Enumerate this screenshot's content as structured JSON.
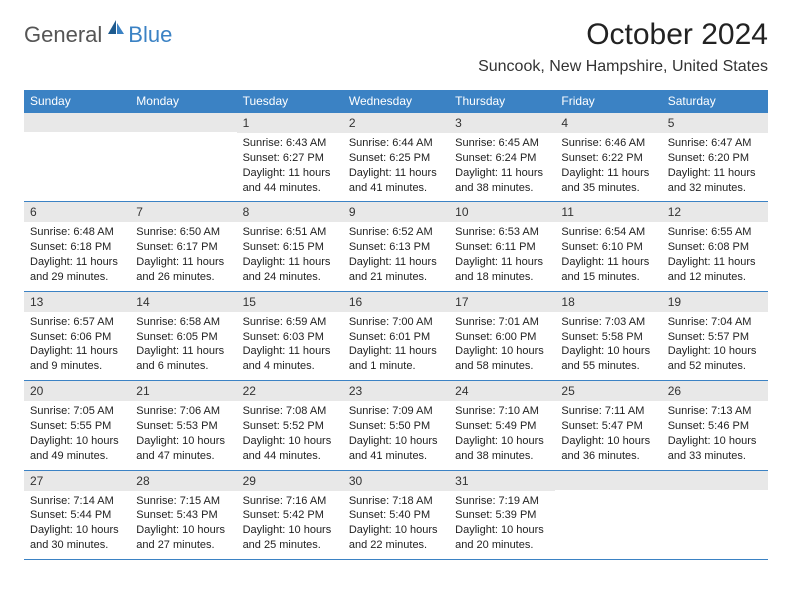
{
  "logo": {
    "general": "General",
    "blue": "Blue"
  },
  "title": "October 2024",
  "location": "Suncook, New Hampshire, United States",
  "colors": {
    "header_bg": "#3b82c4",
    "header_text": "#ffffff",
    "date_bg": "#e8e8e8",
    "border": "#3b82c4",
    "body_text": "#222222"
  },
  "day_headers": [
    "Sunday",
    "Monday",
    "Tuesday",
    "Wednesday",
    "Thursday",
    "Friday",
    "Saturday"
  ],
  "weeks": [
    [
      {
        "date": "",
        "sunrise": "",
        "sunset": "",
        "daylight": ""
      },
      {
        "date": "",
        "sunrise": "",
        "sunset": "",
        "daylight": ""
      },
      {
        "date": "1",
        "sunrise": "Sunrise: 6:43 AM",
        "sunset": "Sunset: 6:27 PM",
        "daylight": "Daylight: 11 hours and 44 minutes."
      },
      {
        "date": "2",
        "sunrise": "Sunrise: 6:44 AM",
        "sunset": "Sunset: 6:25 PM",
        "daylight": "Daylight: 11 hours and 41 minutes."
      },
      {
        "date": "3",
        "sunrise": "Sunrise: 6:45 AM",
        "sunset": "Sunset: 6:24 PM",
        "daylight": "Daylight: 11 hours and 38 minutes."
      },
      {
        "date": "4",
        "sunrise": "Sunrise: 6:46 AM",
        "sunset": "Sunset: 6:22 PM",
        "daylight": "Daylight: 11 hours and 35 minutes."
      },
      {
        "date": "5",
        "sunrise": "Sunrise: 6:47 AM",
        "sunset": "Sunset: 6:20 PM",
        "daylight": "Daylight: 11 hours and 32 minutes."
      }
    ],
    [
      {
        "date": "6",
        "sunrise": "Sunrise: 6:48 AM",
        "sunset": "Sunset: 6:18 PM",
        "daylight": "Daylight: 11 hours and 29 minutes."
      },
      {
        "date": "7",
        "sunrise": "Sunrise: 6:50 AM",
        "sunset": "Sunset: 6:17 PM",
        "daylight": "Daylight: 11 hours and 26 minutes."
      },
      {
        "date": "8",
        "sunrise": "Sunrise: 6:51 AM",
        "sunset": "Sunset: 6:15 PM",
        "daylight": "Daylight: 11 hours and 24 minutes."
      },
      {
        "date": "9",
        "sunrise": "Sunrise: 6:52 AM",
        "sunset": "Sunset: 6:13 PM",
        "daylight": "Daylight: 11 hours and 21 minutes."
      },
      {
        "date": "10",
        "sunrise": "Sunrise: 6:53 AM",
        "sunset": "Sunset: 6:11 PM",
        "daylight": "Daylight: 11 hours and 18 minutes."
      },
      {
        "date": "11",
        "sunrise": "Sunrise: 6:54 AM",
        "sunset": "Sunset: 6:10 PM",
        "daylight": "Daylight: 11 hours and 15 minutes."
      },
      {
        "date": "12",
        "sunrise": "Sunrise: 6:55 AM",
        "sunset": "Sunset: 6:08 PM",
        "daylight": "Daylight: 11 hours and 12 minutes."
      }
    ],
    [
      {
        "date": "13",
        "sunrise": "Sunrise: 6:57 AM",
        "sunset": "Sunset: 6:06 PM",
        "daylight": "Daylight: 11 hours and 9 minutes."
      },
      {
        "date": "14",
        "sunrise": "Sunrise: 6:58 AM",
        "sunset": "Sunset: 6:05 PM",
        "daylight": "Daylight: 11 hours and 6 minutes."
      },
      {
        "date": "15",
        "sunrise": "Sunrise: 6:59 AM",
        "sunset": "Sunset: 6:03 PM",
        "daylight": "Daylight: 11 hours and 4 minutes."
      },
      {
        "date": "16",
        "sunrise": "Sunrise: 7:00 AM",
        "sunset": "Sunset: 6:01 PM",
        "daylight": "Daylight: 11 hours and 1 minute."
      },
      {
        "date": "17",
        "sunrise": "Sunrise: 7:01 AM",
        "sunset": "Sunset: 6:00 PM",
        "daylight": "Daylight: 10 hours and 58 minutes."
      },
      {
        "date": "18",
        "sunrise": "Sunrise: 7:03 AM",
        "sunset": "Sunset: 5:58 PM",
        "daylight": "Daylight: 10 hours and 55 minutes."
      },
      {
        "date": "19",
        "sunrise": "Sunrise: 7:04 AM",
        "sunset": "Sunset: 5:57 PM",
        "daylight": "Daylight: 10 hours and 52 minutes."
      }
    ],
    [
      {
        "date": "20",
        "sunrise": "Sunrise: 7:05 AM",
        "sunset": "Sunset: 5:55 PM",
        "daylight": "Daylight: 10 hours and 49 minutes."
      },
      {
        "date": "21",
        "sunrise": "Sunrise: 7:06 AM",
        "sunset": "Sunset: 5:53 PM",
        "daylight": "Daylight: 10 hours and 47 minutes."
      },
      {
        "date": "22",
        "sunrise": "Sunrise: 7:08 AM",
        "sunset": "Sunset: 5:52 PM",
        "daylight": "Daylight: 10 hours and 44 minutes."
      },
      {
        "date": "23",
        "sunrise": "Sunrise: 7:09 AM",
        "sunset": "Sunset: 5:50 PM",
        "daylight": "Daylight: 10 hours and 41 minutes."
      },
      {
        "date": "24",
        "sunrise": "Sunrise: 7:10 AM",
        "sunset": "Sunset: 5:49 PM",
        "daylight": "Daylight: 10 hours and 38 minutes."
      },
      {
        "date": "25",
        "sunrise": "Sunrise: 7:11 AM",
        "sunset": "Sunset: 5:47 PM",
        "daylight": "Daylight: 10 hours and 36 minutes."
      },
      {
        "date": "26",
        "sunrise": "Sunrise: 7:13 AM",
        "sunset": "Sunset: 5:46 PM",
        "daylight": "Daylight: 10 hours and 33 minutes."
      }
    ],
    [
      {
        "date": "27",
        "sunrise": "Sunrise: 7:14 AM",
        "sunset": "Sunset: 5:44 PM",
        "daylight": "Daylight: 10 hours and 30 minutes."
      },
      {
        "date": "28",
        "sunrise": "Sunrise: 7:15 AM",
        "sunset": "Sunset: 5:43 PM",
        "daylight": "Daylight: 10 hours and 27 minutes."
      },
      {
        "date": "29",
        "sunrise": "Sunrise: 7:16 AM",
        "sunset": "Sunset: 5:42 PM",
        "daylight": "Daylight: 10 hours and 25 minutes."
      },
      {
        "date": "30",
        "sunrise": "Sunrise: 7:18 AM",
        "sunset": "Sunset: 5:40 PM",
        "daylight": "Daylight: 10 hours and 22 minutes."
      },
      {
        "date": "31",
        "sunrise": "Sunrise: 7:19 AM",
        "sunset": "Sunset: 5:39 PM",
        "daylight": "Daylight: 10 hours and 20 minutes."
      },
      {
        "date": "",
        "sunrise": "",
        "sunset": "",
        "daylight": ""
      },
      {
        "date": "",
        "sunrise": "",
        "sunset": "",
        "daylight": ""
      }
    ]
  ]
}
